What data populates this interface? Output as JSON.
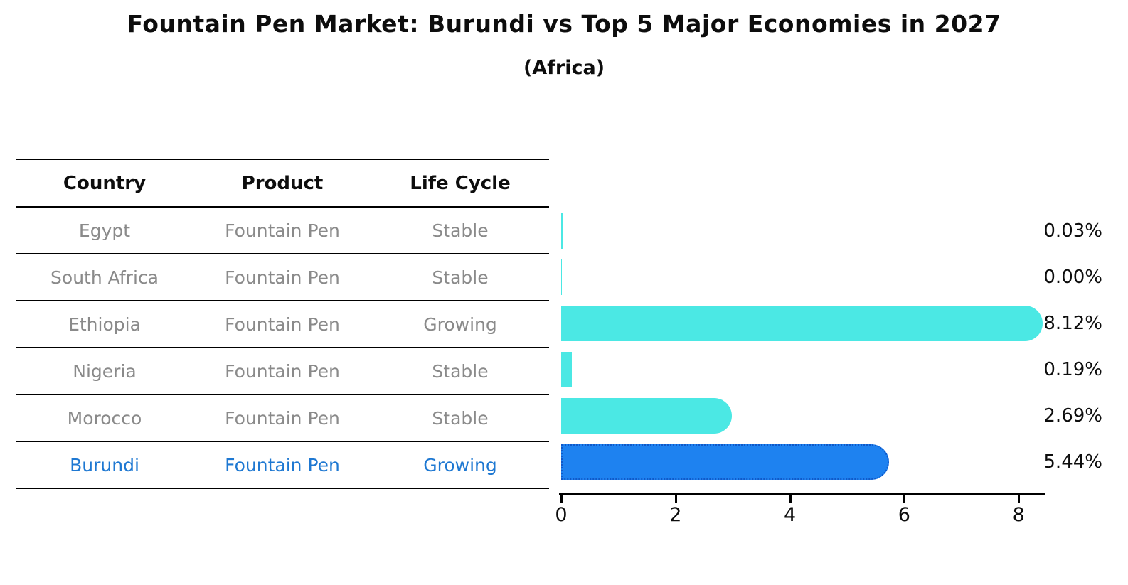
{
  "title": "Fountain Pen Market: Burundi vs Top 5 Major Economies in 2027",
  "subtitle": "(Africa)",
  "table": {
    "headers": [
      "Country",
      "Product",
      "Life Cycle"
    ],
    "rows": [
      {
        "country": "Egypt",
        "product": "Fountain Pen",
        "life_cycle": "Stable",
        "highlight": false
      },
      {
        "country": "South Africa",
        "product": "Fountain Pen",
        "life_cycle": "Stable",
        "highlight": false
      },
      {
        "country": "Ethiopia",
        "product": "Fountain Pen",
        "life_cycle": "Growing",
        "highlight": false
      },
      {
        "country": "Nigeria",
        "product": "Fountain Pen",
        "life_cycle": "Stable",
        "highlight": false
      },
      {
        "country": "Morocco",
        "product": "Fountain Pen",
        "life_cycle": "Stable",
        "highlight": false
      },
      {
        "country": "Burundi",
        "product": "Fountain Pen",
        "life_cycle": "Growing",
        "highlight": true
      }
    ]
  },
  "chart_data": {
    "type": "bar",
    "orientation": "horizontal",
    "title": "Fountain Pen Market: Burundi vs Top 5 Major Economies in 2027",
    "subtitle": "(Africa)",
    "categories": [
      "Egypt",
      "South Africa",
      "Ethiopia",
      "Nigeria",
      "Morocco",
      "Burundi"
    ],
    "values": [
      0.03,
      0.0,
      8.12,
      0.19,
      2.69,
      5.44
    ],
    "value_labels": [
      "0.03%",
      "0.00%",
      "8.12%",
      "0.19%",
      "2.69%",
      "5.44%"
    ],
    "xticks": [
      0,
      2,
      4,
      6,
      8
    ],
    "xlim": [
      0,
      8.5
    ],
    "xlabel": "",
    "ylabel": "",
    "grid": false,
    "legend": "none",
    "highlight_category": "Burundi",
    "colors": {
      "bar": "#4be8e4",
      "highlight": "#1e82f0",
      "highlight_border": "#1058c8",
      "highlight_text": "#1e78d2",
      "row_text": "#8a8a8a"
    }
  }
}
